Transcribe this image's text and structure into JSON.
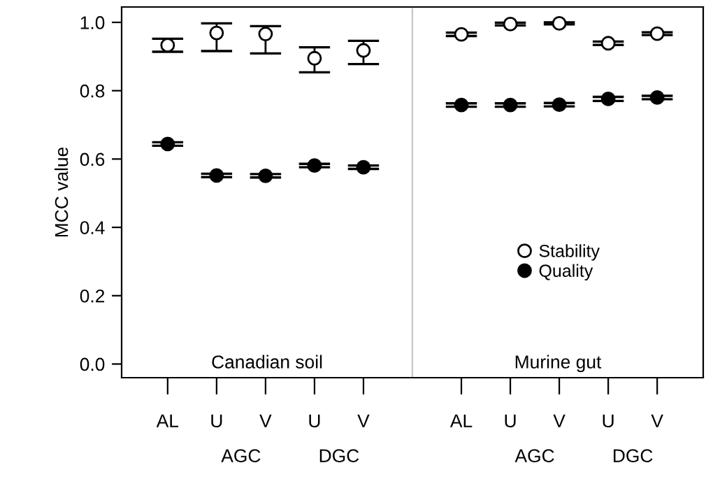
{
  "chart_data": [
    {
      "type": "scatter",
      "categories": [
        "AL",
        "U",
        "V",
        "U",
        "V"
      ],
      "ylabel": "MCC value",
      "ylim": [
        -0.04,
        1.045
      ],
      "yticks": [
        {
          "value": 0,
          "label": "0.0"
        },
        0.2,
        0.4,
        0.6,
        0.8,
        {
          "value": 1,
          "label": "1.0"
        }
      ],
      "marker": "circle",
      "grid": false,
      "annotations": [
        "Canadian soil",
        "AGC",
        "DGC"
      ],
      "series": [
        {
          "color": "#ffffff",
          "values": [
            0.933,
            0.969,
            0.966,
            0.895,
            0.918
          ],
          "errors": [
            [
              0.914,
              0.952
            ],
            [
              0.916,
              0.997
            ],
            [
              0.909,
              0.989
            ],
            [
              0.854,
              0.927
            ],
            [
              0.878,
              0.946
            ]
          ]
        },
        {
          "color": "#000000",
          "values": [
            0.644,
            0.552,
            0.551,
            0.581,
            0.576
          ],
          "errors": [
            0.005,
            0.005,
            0.005,
            0.005,
            0.005
          ]
        }
      ]
    },
    {
      "type": "scatter",
      "categories": [
        "AL",
        "U",
        "V",
        "U",
        "V"
      ],
      "ylim": [
        -0.04,
        1.045
      ],
      "tick_labels": "x",
      "marker": "circle",
      "grid": false,
      "legend": "bottom",
      "annotations": [
        "Murine gut",
        "AGC",
        "DGC"
      ],
      "series": [
        {
          "name": "Stability",
          "color": "#ffffff",
          "values": [
            0.965,
            0.995,
            0.997,
            0.939,
            0.967
          ],
          "errors": [
            0.005,
            0.004,
            0.003,
            0.005,
            0.004
          ]
        },
        {
          "name": "Quality",
          "color": "#000000",
          "values": [
            0.758,
            0.758,
            0.759,
            0.776,
            0.78
          ],
          "errors": [
            0.005,
            0.005,
            0.005,
            0.006,
            0.005
          ]
        }
      ]
    }
  ]
}
